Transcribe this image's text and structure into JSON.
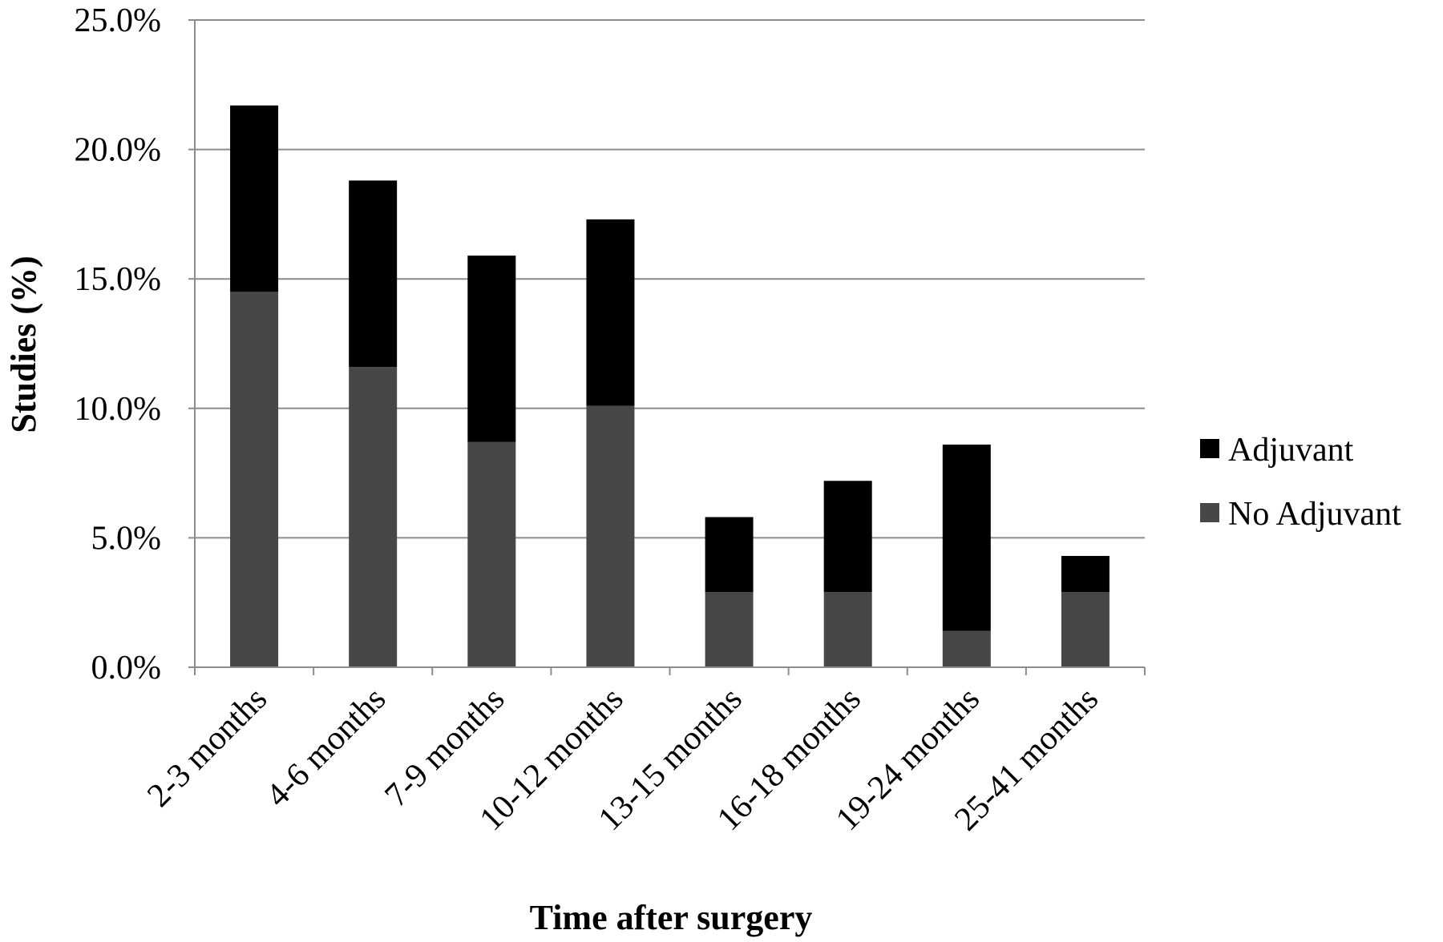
{
  "chart_data": {
    "type": "bar",
    "stacked": true,
    "categories": [
      "2-3 months",
      "4-6 months",
      "7-9 months",
      "10-12 months",
      "13-15 months",
      "16-18 months",
      "19-24 months",
      "25-41 months"
    ],
    "series": [
      {
        "name": "No Adjuvant",
        "values": [
          14.5,
          11.6,
          8.7,
          10.1,
          2.9,
          2.9,
          1.4,
          2.9
        ],
        "color": "#474747"
      },
      {
        "name": "Adjuvant",
        "values": [
          7.2,
          7.2,
          7.2,
          7.2,
          2.9,
          4.3,
          7.2,
          1.4
        ],
        "color": "#000000"
      }
    ],
    "xlabel": "Time after surgery",
    "ylabel": "Studies (%)",
    "ylim": [
      0,
      25
    ],
    "yticks": [
      0,
      5,
      10,
      15,
      20,
      25
    ],
    "ytick_labels": [
      "0.0%",
      "5.0%",
      "10.0%",
      "15.0%",
      "20.0%",
      "25.0%"
    ],
    "grid": true,
    "legend_position": "right",
    "legend_order": [
      "Adjuvant",
      "No Adjuvant"
    ]
  }
}
